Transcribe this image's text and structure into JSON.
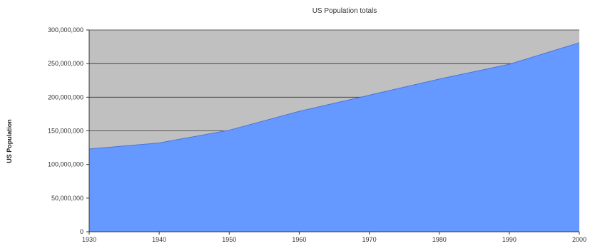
{
  "chart_data": {
    "type": "area",
    "title": "US Population totals",
    "ylabel": "US Population",
    "xlabel": "",
    "x": [
      1930,
      1940,
      1950,
      1960,
      1970,
      1980,
      1990,
      2000
    ],
    "series": [
      {
        "values": [
          123000000,
          132000000,
          151000000,
          179000000,
          203000000,
          227000000,
          249000000,
          281000000
        ]
      }
    ],
    "xlim": [
      1930,
      2000
    ],
    "ylim": [
      0,
      300000000
    ],
    "x_ticks": [
      "1930",
      "1940",
      "1950",
      "1960",
      "1970",
      "1980",
      "1990",
      "2000"
    ],
    "y_ticks": [
      "0",
      "50,000,000",
      "100,000,000",
      "150,000,000",
      "200,000,000",
      "250,000,000",
      "300,000,000"
    ],
    "grid": true,
    "legend": "none",
    "colors": {
      "area": "#6699ff",
      "plot_background": "#c0c0c0",
      "grid": "#333333",
      "axis": "#333333"
    }
  }
}
